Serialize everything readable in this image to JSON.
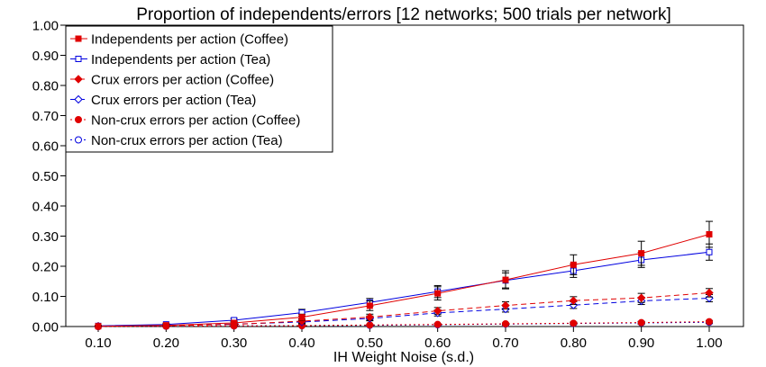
{
  "chart_data": {
    "type": "line",
    "title": "Proportion of independents/errors [12 networks; 500 trials per network]",
    "xlabel": "IH Weight Noise (s.d.)",
    "ylabel": "",
    "categories": [
      "0.10",
      "0.20",
      "0.30",
      "0.40",
      "0.50",
      "0.60",
      "0.70",
      "0.80",
      "0.90",
      "1.00"
    ],
    "y_ticks": [
      "0.00",
      "0.10",
      "0.20",
      "0.30",
      "0.40",
      "0.50",
      "0.60",
      "0.70",
      "0.80",
      "0.90",
      "1.00"
    ],
    "ylim": [
      0,
      1
    ],
    "grid": false,
    "legend_position": "top-left",
    "series": [
      {
        "name": "Independents per action (Coffee)",
        "color": "#e00000",
        "dash": "solid",
        "marker": "square-filled",
        "values": [
          0.001,
          0.004,
          0.012,
          0.031,
          0.069,
          0.11,
          0.155,
          0.205,
          0.243,
          0.306
        ],
        "errors": [
          0.001,
          0.003,
          0.006,
          0.01,
          0.016,
          0.022,
          0.03,
          0.033,
          0.04,
          0.043
        ]
      },
      {
        "name": "Independents per action (Tea)",
        "color": "#0000e0",
        "dash": "solid",
        "marker": "square-open",
        "values": [
          0.002,
          0.007,
          0.021,
          0.046,
          0.08,
          0.116,
          0.153,
          0.185,
          0.221,
          0.247
        ],
        "errors": [
          0.002,
          0.003,
          0.006,
          0.011,
          0.013,
          0.02,
          0.025,
          0.022,
          0.025,
          0.027
        ]
      },
      {
        "name": "Crux errors per action (Coffee)",
        "color": "#e00000",
        "dash": "dash",
        "marker": "diamond-filled",
        "values": [
          0.001,
          0.003,
          0.007,
          0.018,
          0.031,
          0.052,
          0.07,
          0.086,
          0.095,
          0.112
        ],
        "errors": [
          0.001,
          0.002,
          0.004,
          0.007,
          0.01,
          0.011,
          0.012,
          0.013,
          0.015,
          0.014
        ]
      },
      {
        "name": "Crux errors per action (Tea)",
        "color": "#0000e0",
        "dash": "dash",
        "marker": "diamond-open",
        "values": [
          0.001,
          0.003,
          0.008,
          0.015,
          0.027,
          0.045,
          0.058,
          0.071,
          0.085,
          0.094
        ],
        "errors": [
          0.001,
          0.002,
          0.004,
          0.006,
          0.008,
          0.01,
          0.01,
          0.011,
          0.012,
          0.012
        ]
      },
      {
        "name": "Non-crux errors per action (Coffee)",
        "color": "#e00000",
        "dash": "dot",
        "marker": "circle-filled",
        "values": [
          0.0,
          0.001,
          0.002,
          0.003,
          0.005,
          0.007,
          0.009,
          0.011,
          0.013,
          0.016
        ],
        "errors": [
          0.0,
          0.001,
          0.001,
          0.002,
          0.002,
          0.003,
          0.003,
          0.004,
          0.004,
          0.004
        ]
      },
      {
        "name": "Non-crux errors per action (Tea)",
        "color": "#0000e0",
        "dash": "dot",
        "marker": "circle-open",
        "values": [
          0.0,
          0.001,
          0.002,
          0.003,
          0.004,
          0.006,
          0.008,
          0.01,
          0.012,
          0.014
        ],
        "errors": [
          0.0,
          0.001,
          0.001,
          0.002,
          0.002,
          0.002,
          0.003,
          0.003,
          0.004,
          0.004
        ]
      }
    ]
  }
}
